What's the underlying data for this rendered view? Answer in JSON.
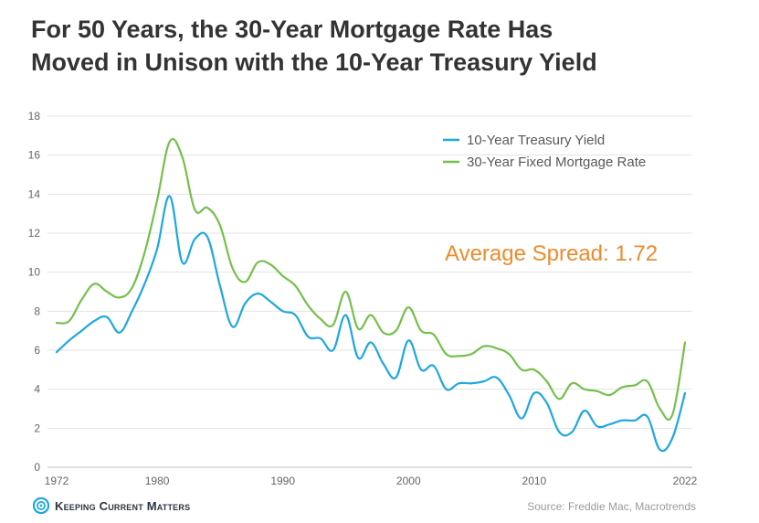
{
  "title_line1": "For 50 Years, the 30-Year Mortgage Rate Has",
  "title_line2": "Moved in Unison with the 10-Year Treasury Yield",
  "annotation": "Average Spread: 1.72",
  "logo_text": "Keeping Current Matters",
  "source": "Source: Freddie Mac, Macrotrends",
  "colors": {
    "treasury": "#1fa7e0",
    "mortgage": "#74c04b",
    "spread": "#ee8a2c",
    "grid": "#e3e3e3",
    "logo": "#1fa7e0"
  },
  "chart_data": {
    "type": "line",
    "xlim": [
      1972,
      2022
    ],
    "ylim": [
      0,
      18
    ],
    "x_ticks": [
      1972,
      1980,
      1990,
      2000,
      2010,
      2022
    ],
    "y_ticks": [
      0,
      2,
      4,
      6,
      8,
      10,
      12,
      14,
      16,
      18
    ],
    "grid": true,
    "legend_placement": "top-right",
    "series": [
      {
        "name": "10-Year Treasury Yield",
        "color": "#1fa7e0",
        "x": [
          1972,
          1973,
          1974,
          1975,
          1976,
          1977,
          1978,
          1979,
          1980,
          1981,
          1982,
          1983,
          1984,
          1985,
          1986,
          1987,
          1988,
          1989,
          1990,
          1991,
          1992,
          1993,
          1994,
          1995,
          1996,
          1997,
          1998,
          1999,
          2000,
          2001,
          2002,
          2003,
          2004,
          2005,
          2006,
          2007,
          2008,
          2009,
          2010,
          2011,
          2012,
          2013,
          2014,
          2015,
          2016,
          2017,
          2018,
          2019,
          2020,
          2021,
          2022
        ],
        "values": [
          5.9,
          6.5,
          7.0,
          7.5,
          7.7,
          6.9,
          8.0,
          9.4,
          11.2,
          13.9,
          10.5,
          11.7,
          11.8,
          9.3,
          7.2,
          8.4,
          8.9,
          8.5,
          8.0,
          7.8,
          6.7,
          6.6,
          6.0,
          7.8,
          5.6,
          6.4,
          5.3,
          4.6,
          6.5,
          5.0,
          5.2,
          4.0,
          4.3,
          4.3,
          4.4,
          4.6,
          3.7,
          2.5,
          3.8,
          3.3,
          1.8,
          1.8,
          2.9,
          2.1,
          2.2,
          2.4,
          2.4,
          2.6,
          0.9,
          1.5,
          3.8
        ]
      },
      {
        "name": "30-Year Fixed Mortgage Rate",
        "color": "#74c04b",
        "x": [
          1972,
          1973,
          1974,
          1975,
          1976,
          1977,
          1978,
          1979,
          1980,
          1981,
          1982,
          1983,
          1984,
          1985,
          1986,
          1987,
          1988,
          1989,
          1990,
          1991,
          1992,
          1993,
          1994,
          1995,
          1996,
          1997,
          1998,
          1999,
          2000,
          2001,
          2002,
          2003,
          2004,
          2005,
          2006,
          2007,
          2008,
          2009,
          2010,
          2011,
          2012,
          2013,
          2014,
          2015,
          2016,
          2017,
          2018,
          2019,
          2020,
          2021,
          2022
        ],
        "values": [
          7.4,
          7.5,
          8.6,
          9.4,
          9.0,
          8.7,
          9.2,
          11.0,
          13.7,
          16.7,
          15.9,
          13.2,
          13.3,
          12.4,
          10.2,
          9.5,
          10.5,
          10.4,
          9.8,
          9.3,
          8.3,
          7.6,
          7.3,
          9.0,
          7.1,
          7.8,
          6.9,
          7.0,
          8.2,
          7.0,
          6.8,
          5.8,
          5.7,
          5.8,
          6.2,
          6.1,
          5.8,
          5.0,
          5.0,
          4.4,
          3.5,
          4.3,
          4.0,
          3.9,
          3.7,
          4.1,
          4.2,
          4.4,
          3.0,
          2.7,
          6.4
        ]
      }
    ]
  }
}
